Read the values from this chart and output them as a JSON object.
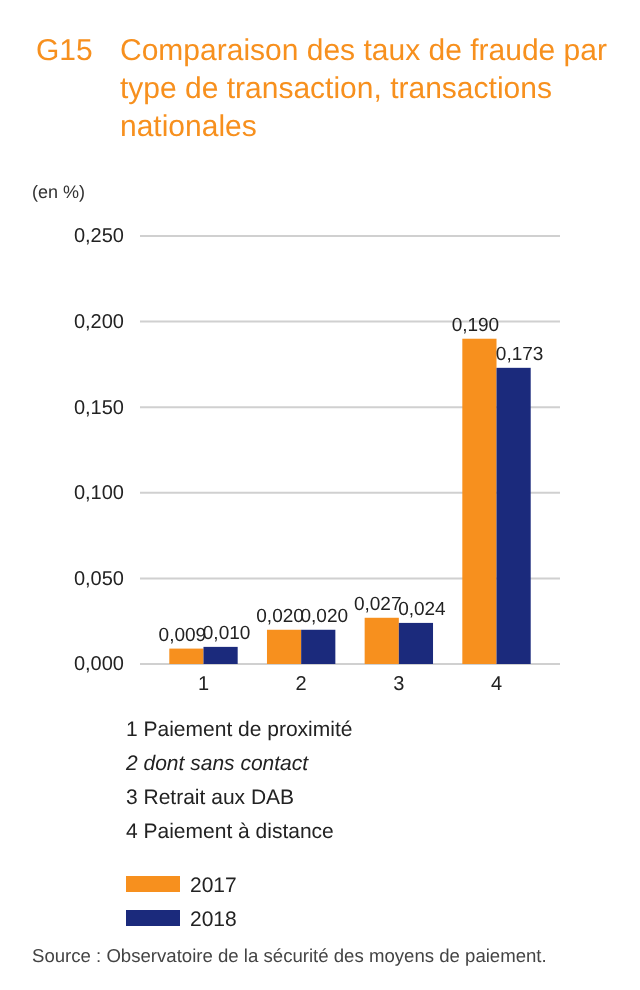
{
  "chart_data": {
    "type": "bar",
    "title": "Comparaison des taux de fraude par type de transaction, transactions nationales",
    "ylabel": "(en %)",
    "categories": [
      "1",
      "2",
      "3",
      "4"
    ],
    "series": [
      {
        "name": "2017",
        "color": "#f7901e",
        "values": [
          0.009,
          0.02,
          0.027,
          0.19
        ],
        "value_labels": [
          "0,009",
          "0,020",
          "0,027",
          "0,190"
        ]
      },
      {
        "name": "2018",
        "color": "#1b2a7c",
        "values": [
          0.01,
          0.02,
          0.024,
          0.173
        ],
        "value_labels": [
          "0,010",
          "0,020",
          "0,024",
          "0,173"
        ]
      }
    ],
    "ylim": [
      0,
      0.25
    ],
    "yticks": [
      {
        "value": 0,
        "label": "0,000"
      },
      {
        "value": 0.05,
        "label": "0,050"
      },
      {
        "value": 0.1,
        "label": "0,100"
      },
      {
        "value": 0.15,
        "label": "0,150"
      },
      {
        "value": 0.2,
        "label": "0,200"
      },
      {
        "value": 0.25,
        "label": "0,250"
      }
    ],
    "grid": "y",
    "legend": "bottom left",
    "annotations": [
      "G15",
      "1 Paiement de proximité",
      "2 dont sans contact",
      "3 Retrait aux DAB",
      "4 Paiement à distance",
      "Source : Observatoire de la sécurité des moyens de paiement."
    ]
  }
}
